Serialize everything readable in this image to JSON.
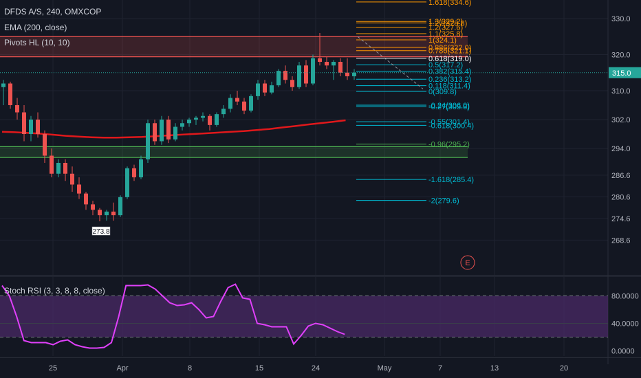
{
  "header": {
    "symbol_line": "DFDS A/S, 240, OMXCOP",
    "ema_label": "EMA (200, close)",
    "pivots_label": "Pivots HL (10, 10)",
    "stoch_label": "Stoch RSI (3, 3, 8, 8, close)"
  },
  "colors": {
    "background": "#131722",
    "bull": "#26a69a",
    "bear": "#ef5350",
    "ema": "#e0181b",
    "fib_orange": "#ff9800",
    "fib_cyan": "#00bcd4",
    "fib_green": "#4caf50",
    "stoch_line": "#e040fb",
    "stoch_band": "#4a2a66"
  },
  "chart_data": {
    "type": "candlestick",
    "price_axis": {
      "ticks": [
        "330.0",
        "320.0",
        "310.0",
        "302.0",
        "294.0",
        "286.6",
        "280.6",
        "274.6",
        "268.6"
      ],
      "ticks_values": [
        330.0,
        320.0,
        310.0,
        302.0,
        294.0,
        286.6,
        280.6,
        274.6,
        268.6
      ],
      "last_price": "315.0",
      "last_price_value": 315.0
    },
    "time_axis": {
      "ticks": [
        "25",
        "Apr",
        "8",
        "15",
        "24",
        "May",
        "7",
        "13",
        "20"
      ]
    },
    "candles": [
      [
        311.0,
        313.0,
        306.0,
        312.0
      ],
      [
        312.0,
        312.5,
        305.0,
        306.0
      ],
      [
        306.0,
        308.0,
        302.0,
        304.0
      ],
      [
        304.0,
        306.0,
        296.0,
        298.0
      ],
      [
        298.0,
        303.0,
        296.0,
        302.0
      ],
      [
        302.0,
        304.0,
        297.0,
        298.0
      ],
      [
        298.0,
        299.0,
        290.0,
        292.0
      ],
      [
        292.0,
        294.0,
        286.0,
        287.0
      ],
      [
        287.0,
        291.0,
        286.0,
        290.0
      ],
      [
        290.0,
        291.0,
        285.0,
        287.0
      ],
      [
        287.0,
        289.0,
        282.0,
        284.0
      ],
      [
        284.0,
        286.0,
        280.0,
        281.5
      ],
      [
        281.5,
        282.0,
        277.0,
        278.5
      ],
      [
        278.5,
        279.5,
        275.5,
        277.0
      ],
      [
        277.0,
        277.5,
        273.8,
        275.5
      ],
      [
        275.5,
        277.0,
        274.0,
        276.5
      ],
      [
        276.5,
        279.0,
        274.0,
        275.5
      ],
      [
        275.5,
        281.0,
        275.0,
        280.5
      ],
      [
        280.5,
        289.0,
        280.0,
        288.5
      ],
      [
        288.5,
        289.5,
        285.0,
        286.0
      ],
      [
        286.0,
        292.0,
        285.5,
        291.0
      ],
      [
        291.0,
        302.0,
        290.0,
        301.0
      ],
      [
        301.0,
        302.0,
        295.0,
        296.0
      ],
      [
        296.0,
        303.0,
        295.0,
        302.0
      ],
      [
        302.0,
        303.0,
        295.5,
        296.5
      ],
      [
        296.5,
        301.0,
        296.0,
        300.0
      ],
      [
        300.0,
        302.0,
        299.0,
        301.0
      ],
      [
        301.0,
        302.5,
        300.0,
        302.0
      ],
      [
        302.0,
        303.0,
        300.5,
        302.5
      ],
      [
        302.5,
        304.0,
        301.5,
        303.0
      ],
      [
        303.0,
        303.5,
        299.0,
        300.5
      ],
      [
        300.5,
        304.0,
        300.0,
        303.5
      ],
      [
        303.5,
        306.0,
        302.5,
        305.0
      ],
      [
        305.0,
        309.0,
        304.0,
        308.0
      ],
      [
        308.0,
        310.0,
        306.0,
        307.0
      ],
      [
        307.0,
        308.0,
        303.5,
        304.5
      ],
      [
        304.5,
        309.0,
        304.0,
        308.5
      ],
      [
        308.5,
        313.0,
        307.5,
        312.0
      ],
      [
        312.0,
        313.0,
        308.5,
        309.5
      ],
      [
        309.5,
        312.5,
        309.0,
        311.5
      ],
      [
        311.5,
        316.0,
        311.0,
        315.5
      ],
      [
        315.5,
        317.0,
        312.0,
        313.0
      ],
      [
        313.0,
        314.0,
        310.0,
        311.0
      ],
      [
        311.0,
        318.0,
        310.5,
        317.0
      ],
      [
        317.0,
        318.5,
        311.0,
        312.0
      ],
      [
        312.0,
        320.0,
        311.5,
        319.0
      ],
      [
        319.0,
        326.0,
        317.0,
        318.0
      ],
      [
        318.0,
        319.5,
        316.0,
        317.0
      ],
      [
        317.0,
        318.5,
        313.0,
        318.0
      ],
      [
        318.0,
        319.0,
        314.0,
        315.0
      ],
      [
        315.0,
        319.0,
        313.0,
        314.0
      ],
      [
        314.0,
        316.0,
        313.0,
        315.0
      ]
    ],
    "ema": [
      298.6,
      298.5,
      298.3,
      298.1,
      297.8,
      297.5,
      297.3,
      297.1,
      297.0,
      297.0,
      297.1,
      297.2,
      297.4,
      297.6,
      297.8,
      298.0,
      298.2,
      298.4,
      298.6,
      298.8,
      299.1,
      299.4,
      299.8,
      300.2,
      300.6,
      301.0,
      301.4,
      301.8
    ],
    "annotation": {
      "label": "273.8",
      "value": 273.8
    },
    "pivot_zones": [
      {
        "low": 319.4,
        "high": 325.0,
        "color": "#ef5350"
      },
      {
        "low": 291.5,
        "high": 294.5,
        "color": "#4caf50"
      }
    ],
    "fib_levels": [
      {
        "label": "1.618(334.6)",
        "value": 334.6,
        "color": "#ff9800"
      },
      {
        "label": "1.3(329.2)",
        "value": 329.2,
        "color": "#ff9800"
      },
      {
        "label": "1.27(328.8)",
        "value": 328.8,
        "color": "#ff9800"
      },
      {
        "label": "1.2(327.6)",
        "value": 327.6,
        "color": "#ff9800"
      },
      {
        "label": "1.1(325.8)",
        "value": 325.8,
        "color": "#ff9800"
      },
      {
        "label": "1(324.1)",
        "value": 324.1,
        "color": "#ff9800"
      },
      {
        "label": "0.886(322.0)",
        "value": 322.0,
        "color": "#ff9800"
      },
      {
        "label": "0.786(321.1)",
        "value": 321.1,
        "color": "#ff9800"
      },
      {
        "label": "0.618(319.0)",
        "value": 319.0,
        "color": "#ffffff"
      },
      {
        "label": "0.5(317.2)",
        "value": 317.2,
        "color": "#00bcd4"
      },
      {
        "label": "0.382(315.4)",
        "value": 315.4,
        "color": "#00bcd4"
      },
      {
        "label": "0.236(313.2)",
        "value": 313.2,
        "color": "#00bcd4"
      },
      {
        "label": "0.118(311.4)",
        "value": 311.4,
        "color": "#00bcd4"
      },
      {
        "label": "0(309.8)",
        "value": 309.8,
        "color": "#00bcd4"
      },
      {
        "label": "-0.24(306.0)",
        "value": 306.0,
        "color": "#00bcd4"
      },
      {
        "label": "-0.27(305.6)",
        "value": 305.6,
        "color": "#00bcd4"
      },
      {
        "label": "-0.55(301.4)",
        "value": 301.4,
        "color": "#00bcd4"
      },
      {
        "label": "-0.618(300.4)",
        "value": 300.4,
        "color": "#00bcd4"
      },
      {
        "label": "-0.96(295.2)",
        "value": 295.2,
        "color": "#4caf50"
      },
      {
        "label": "-1.618(285.4)",
        "value": 285.4,
        "color": "#00bcd4"
      },
      {
        "label": "-2(279.6)",
        "value": 279.6,
        "color": "#00bcd4"
      }
    ],
    "event_marker": {
      "label": "E"
    },
    "stoch_rsi": {
      "ticks": [
        "80.0000",
        "40.0000",
        "0.0000"
      ],
      "ticks_values": [
        80,
        40,
        0
      ],
      "band": [
        20,
        80
      ],
      "values": [
        95,
        80,
        50,
        15,
        12,
        12,
        12,
        9,
        14,
        16,
        9,
        6,
        4,
        4,
        5,
        12,
        50,
        95,
        95,
        95,
        96,
        90,
        80,
        70,
        66,
        67,
        70,
        60,
        48,
        50,
        72,
        92,
        97,
        77,
        75,
        40,
        38,
        35,
        35,
        35,
        10,
        22,
        36,
        40,
        38,
        33,
        28,
        24
      ]
    }
  }
}
